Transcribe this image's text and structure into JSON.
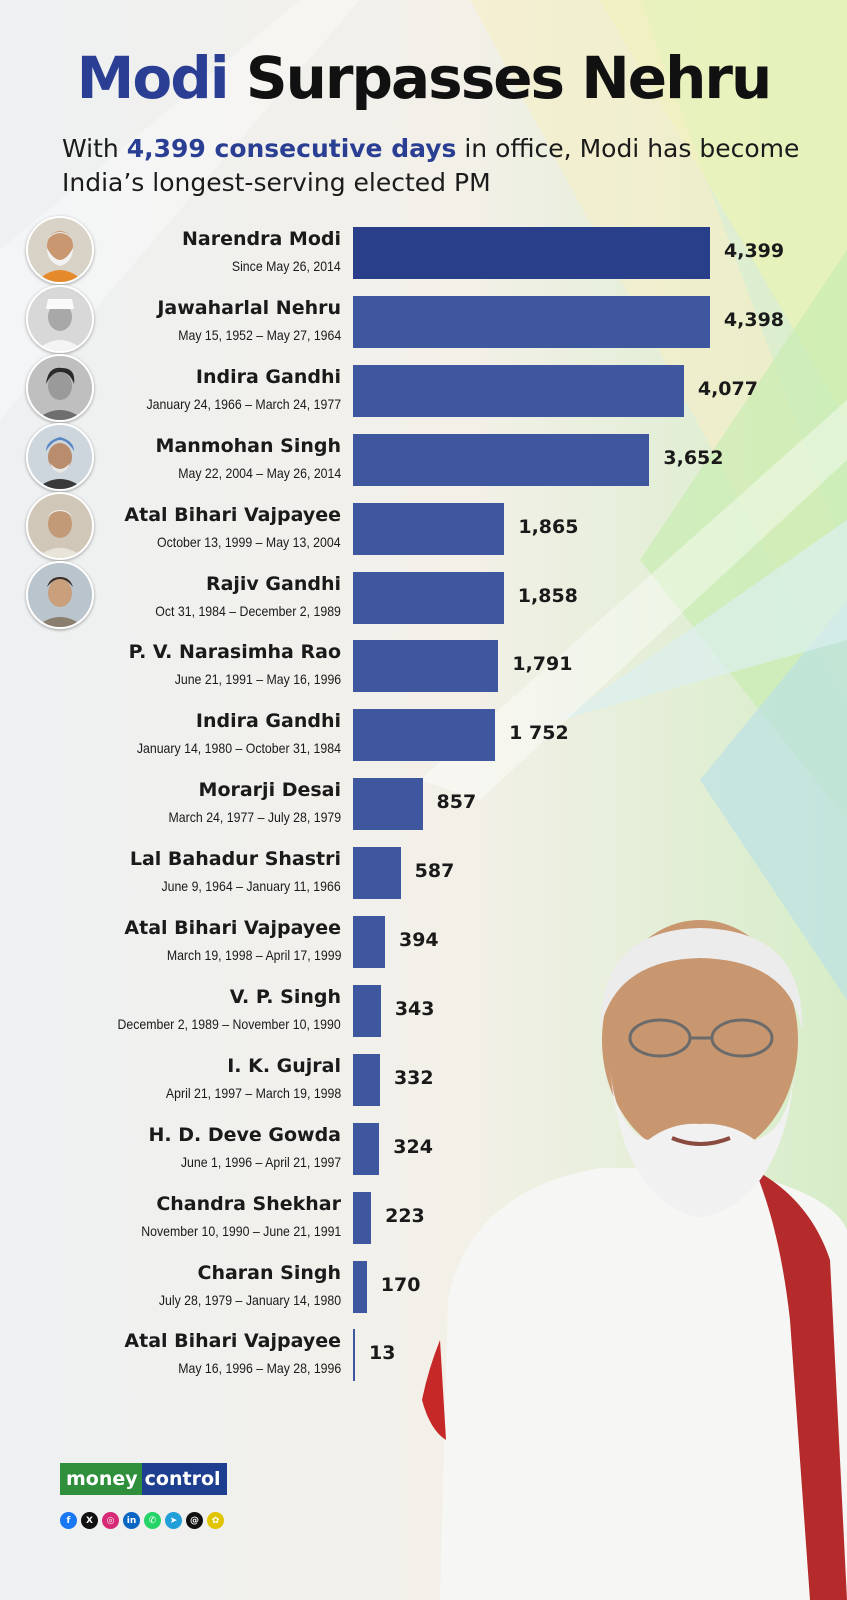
{
  "title": {
    "part1": "Modi",
    "part2": "Surpasses Nehru"
  },
  "subtitle": {
    "pre": "With ",
    "highlight": "4,399 consecutive days",
    "post": " in office, Modi has become India’s longest-serving elected PM"
  },
  "chart_data": {
    "type": "bar",
    "orientation": "horizontal",
    "categories": [
      "Narendra Modi",
      "Jawaharlal Nehru",
      "Indira Gandhi",
      "Manmohan Singh",
      "Atal Bihari Vajpayee",
      "Rajiv Gandhi",
      "P. V. Narasimha Rao",
      "Indira Gandhi",
      "Morarji Desai",
      "Lal Bahadur Shastri",
      "Atal Bihari Vajpayee",
      "V. P. Singh",
      "I. K. Gujral",
      "H. D. Deve Gowda",
      "Chandra Shekhar",
      "Charan Singh",
      "Atal Bihari Vajpayee"
    ],
    "periods": [
      "Since May 26, 2014",
      "May 15, 1952 – May 27, 1964",
      "January 24, 1966 – March 24, 1977",
      "May 22, 2004 – May 26, 2014",
      "October 13, 1999 – May 13, 2004",
      "Oct 31, 1984 – December 2, 1989",
      "June 21, 1991 – May 16, 1996",
      "January 14, 1980 – October 31, 1984",
      "March 24, 1977 – July 28, 1979",
      "June 9, 1964 – January 11, 1966",
      "March 19, 1998 – April 17, 1999",
      "December 2, 1989 – November 10, 1990",
      "April 21, 1997 – March 19, 1998",
      "June 1, 1996 – April 21, 1997",
      "November 10, 1990 – June 21, 1991",
      "July 28, 1979 – January 14, 1980",
      "May 16, 1996 – May 28, 1996"
    ],
    "values": [
      4399,
      4398,
      4077,
      3652,
      1865,
      1858,
      1791,
      1752,
      857,
      587,
      394,
      343,
      332,
      324,
      223,
      170,
      13
    ],
    "value_labels": [
      "4,399",
      "4,398",
      "4,077",
      "3,652",
      "1,865",
      "1,858",
      "1,791",
      "1 752",
      "857",
      "587",
      "394",
      "343",
      "332",
      "324",
      "223",
      "170",
      "13"
    ],
    "xlim": [
      0,
      4399
    ],
    "grid": false,
    "legend": "none",
    "colors": {
      "bar": "#3f579e",
      "bar_highlight": "#2a3f8a"
    }
  },
  "colors": {
    "title_accent": "#2a3f93",
    "title_text": "#111111"
  },
  "logo": {
    "part1": "money",
    "part2": "control"
  },
  "socials": [
    {
      "icon": "facebook-icon",
      "glyph": "f",
      "color": "#1877f2"
    },
    {
      "icon": "x-icon",
      "glyph": "X",
      "color": "#111111"
    },
    {
      "icon": "instagram-icon",
      "glyph": "◎",
      "color": "#d62976"
    },
    {
      "icon": "linkedin-icon",
      "glyph": "in",
      "color": "#0a66c2"
    },
    {
      "icon": "whatsapp-icon",
      "glyph": "✆",
      "color": "#25d366"
    },
    {
      "icon": "telegram-icon",
      "glyph": "➤",
      "color": "#229ed9"
    },
    {
      "icon": "threads-icon",
      "glyph": "@",
      "color": "#111111"
    },
    {
      "icon": "snapchat-icon",
      "glyph": "✿",
      "color": "#e0c400"
    }
  ]
}
